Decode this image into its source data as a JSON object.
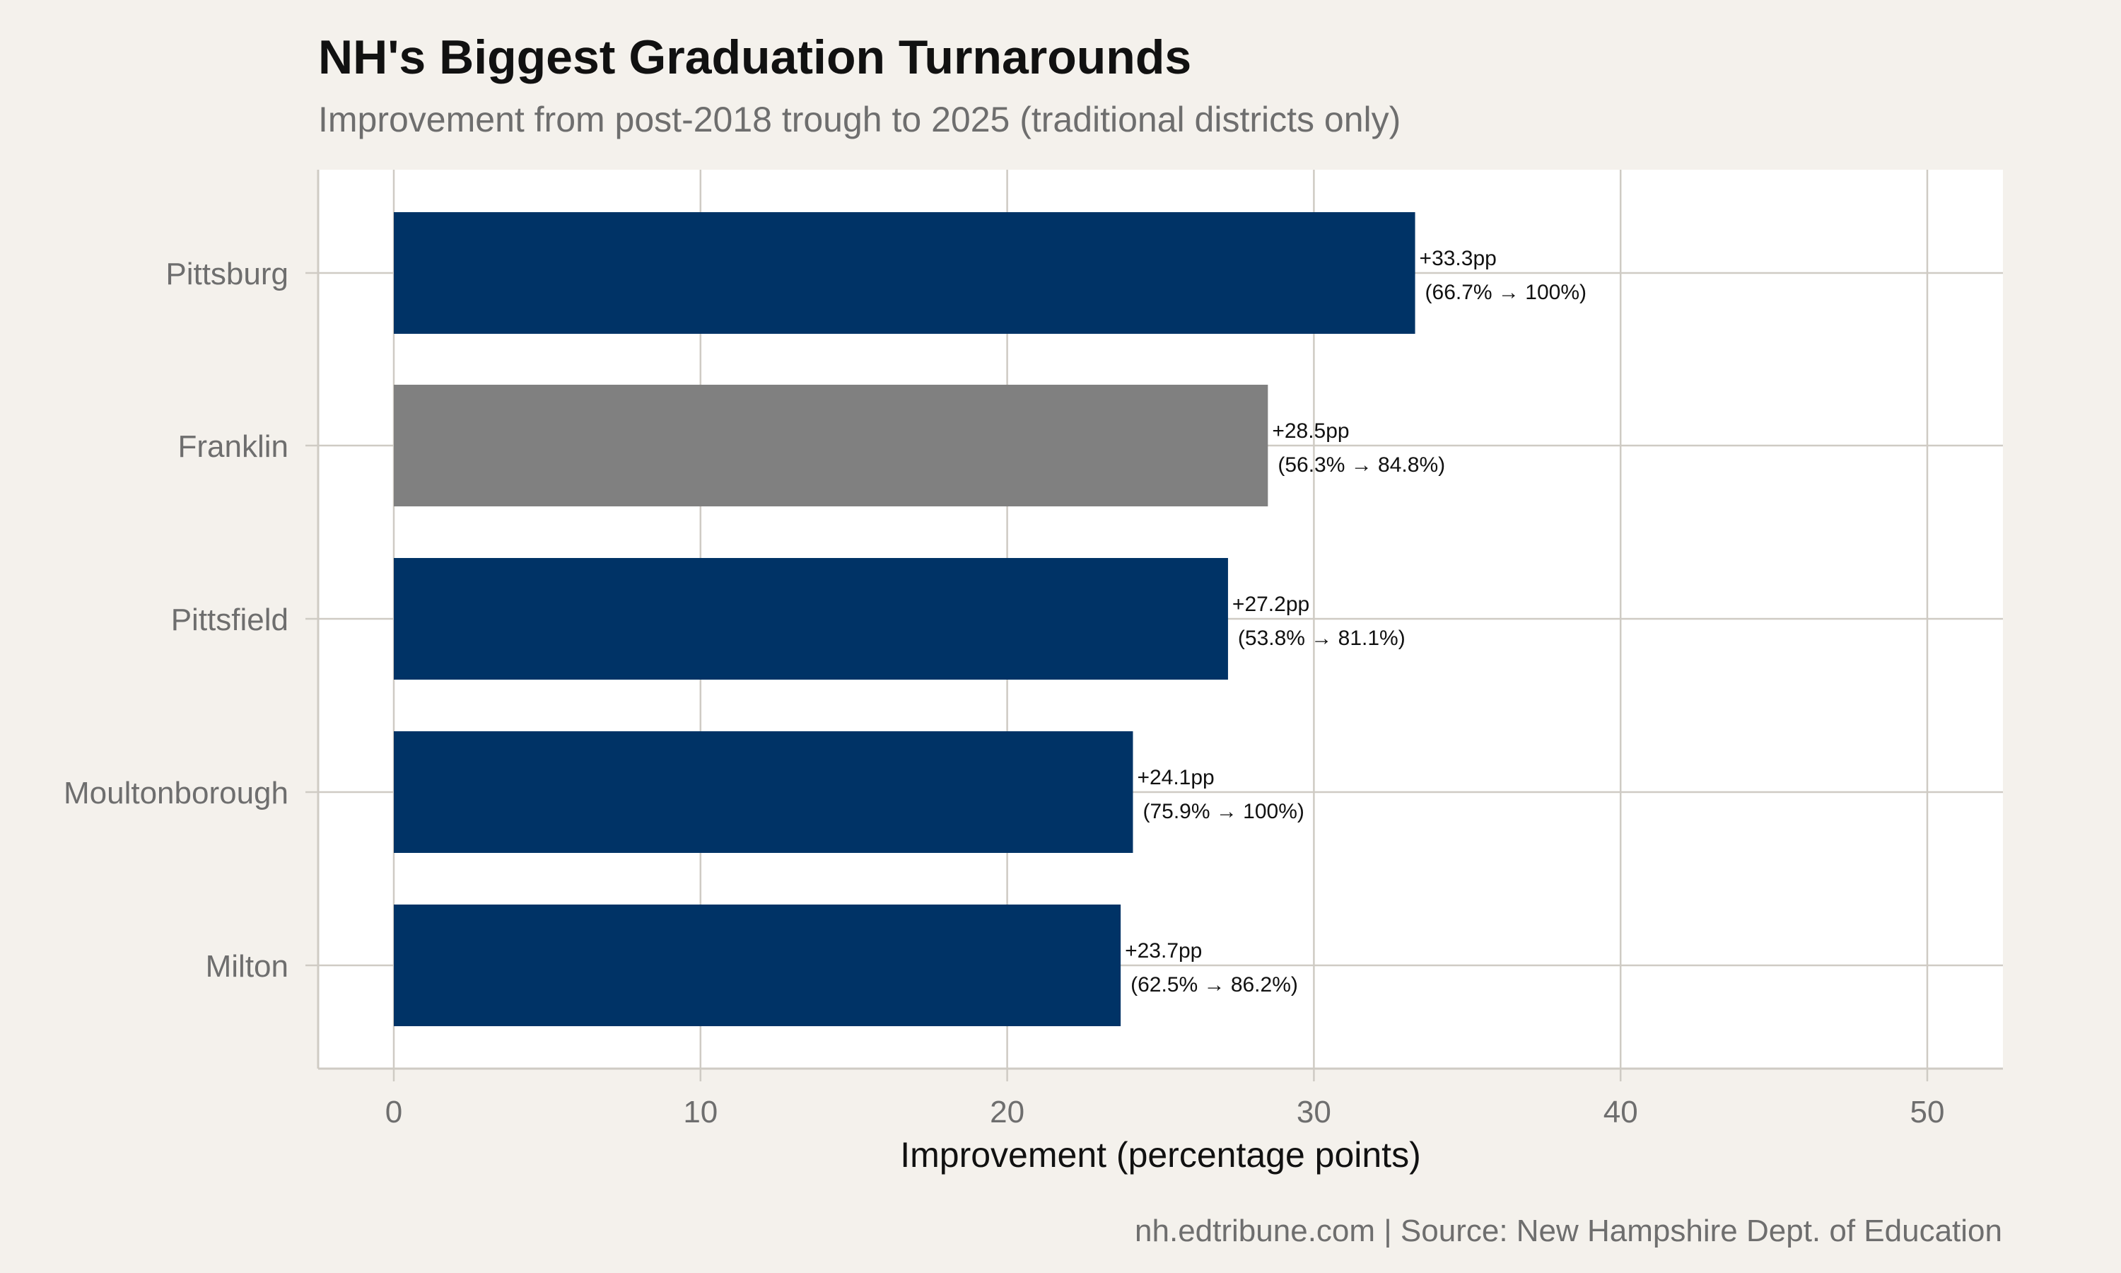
{
  "title": "NH's Biggest Graduation Turnarounds",
  "subtitle": "Improvement from post-2018 trough to 2025 (traditional districts only)",
  "caption": "nh.edtribune.com | Source: New Hampshire Dept. of Education",
  "colors": {
    "background": "#f4f1ec",
    "panel": "#ffffff",
    "grid": "#cfcbc4",
    "primary_bar": "#003366",
    "highlight_bar": "#808080",
    "axis_text": "#6e6e6e",
    "label_text": "#111111"
  },
  "chart_data": {
    "type": "bar",
    "orientation": "horizontal",
    "title": "NH's Biggest Graduation Turnarounds",
    "subtitle": "Improvement from post-2018 trough to 2025 (traditional districts only)",
    "xlabel": "Improvement (percentage points)",
    "ylabel": "",
    "xlim": [
      0,
      50
    ],
    "xticks": [
      "0",
      "10",
      "20",
      "30",
      "40",
      "50"
    ],
    "grid": true,
    "categories": [
      "Pittsburg",
      "Franklin",
      "Pittsfield",
      "Moultonborough",
      "Milton"
    ],
    "values": [
      33.3,
      28.5,
      27.2,
      24.1,
      23.7
    ],
    "highlighted": [
      false,
      true,
      false,
      false,
      false
    ],
    "labels": [
      "+33.3pp",
      "+28.5pp",
      "+27.2pp",
      "+24.1pp",
      "+23.7pp"
    ],
    "sublabels": [
      "(66.7% → 100%)",
      "(56.3% → 84.8%)",
      "(53.8% → 81.1%)",
      "(75.9% → 100%)",
      "(62.5% → 86.2%)"
    ]
  }
}
